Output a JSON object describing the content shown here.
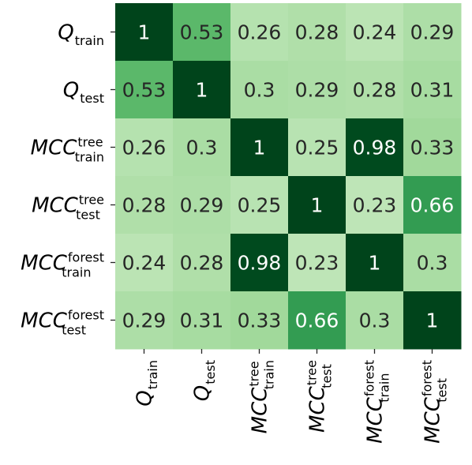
{
  "chart_data": {
    "type": "heatmap",
    "row_labels": [
      {
        "base": "Q",
        "sub": "train",
        "sup": ""
      },
      {
        "base": "Q",
        "sub": "test",
        "sup": ""
      },
      {
        "base": "MCC",
        "sub": "train",
        "sup": "tree"
      },
      {
        "base": "MCC",
        "sub": "test",
        "sup": "tree"
      },
      {
        "base": "MCC",
        "sub": "train",
        "sup": "forest"
      },
      {
        "base": "MCC",
        "sub": "test",
        "sup": "forest"
      }
    ],
    "col_labels": [
      {
        "base": "Q",
        "sub": "train",
        "sup": ""
      },
      {
        "base": "Q",
        "sub": "test",
        "sup": ""
      },
      {
        "base": "MCC",
        "sub": "train",
        "sup": "tree"
      },
      {
        "base": "MCC",
        "sub": "test",
        "sup": "tree"
      },
      {
        "base": "MCC",
        "sub": "train",
        "sup": "forest"
      },
      {
        "base": "MCC",
        "sub": "test",
        "sup": "forest"
      }
    ],
    "values": [
      [
        1,
        0.53,
        0.26,
        0.28,
        0.24,
        0.29
      ],
      [
        0.53,
        1,
        0.3,
        0.29,
        0.28,
        0.31
      ],
      [
        0.26,
        0.3,
        1,
        0.25,
        0.98,
        0.33
      ],
      [
        0.28,
        0.29,
        0.25,
        1,
        0.23,
        0.66
      ],
      [
        0.24,
        0.28,
        0.98,
        0.23,
        1,
        0.3
      ],
      [
        0.29,
        0.31,
        0.33,
        0.66,
        0.3,
        1
      ]
    ],
    "cell_text": [
      [
        "1",
        "0.53",
        "0.26",
        "0.28",
        "0.24",
        "0.29"
      ],
      [
        "0.53",
        "1",
        "0.3",
        "0.29",
        "0.28",
        "0.31"
      ],
      [
        "0.26",
        "0.3",
        "1",
        "0.25",
        "0.98",
        "0.33"
      ],
      [
        "0.28",
        "0.29",
        "0.25",
        "1",
        "0.23",
        "0.66"
      ],
      [
        "0.24",
        "0.28",
        "0.98",
        "0.23",
        "1",
        "0.3"
      ],
      [
        "0.29",
        "0.31",
        "0.33",
        "0.66",
        "0.3",
        "1"
      ]
    ],
    "colormap": "Greens",
    "colors": {
      "low": "#f7fcf5",
      "high": "#00441b",
      "light_text": "#ffffff",
      "dark_text": "#262626"
    },
    "grid": false,
    "legend": "none"
  }
}
